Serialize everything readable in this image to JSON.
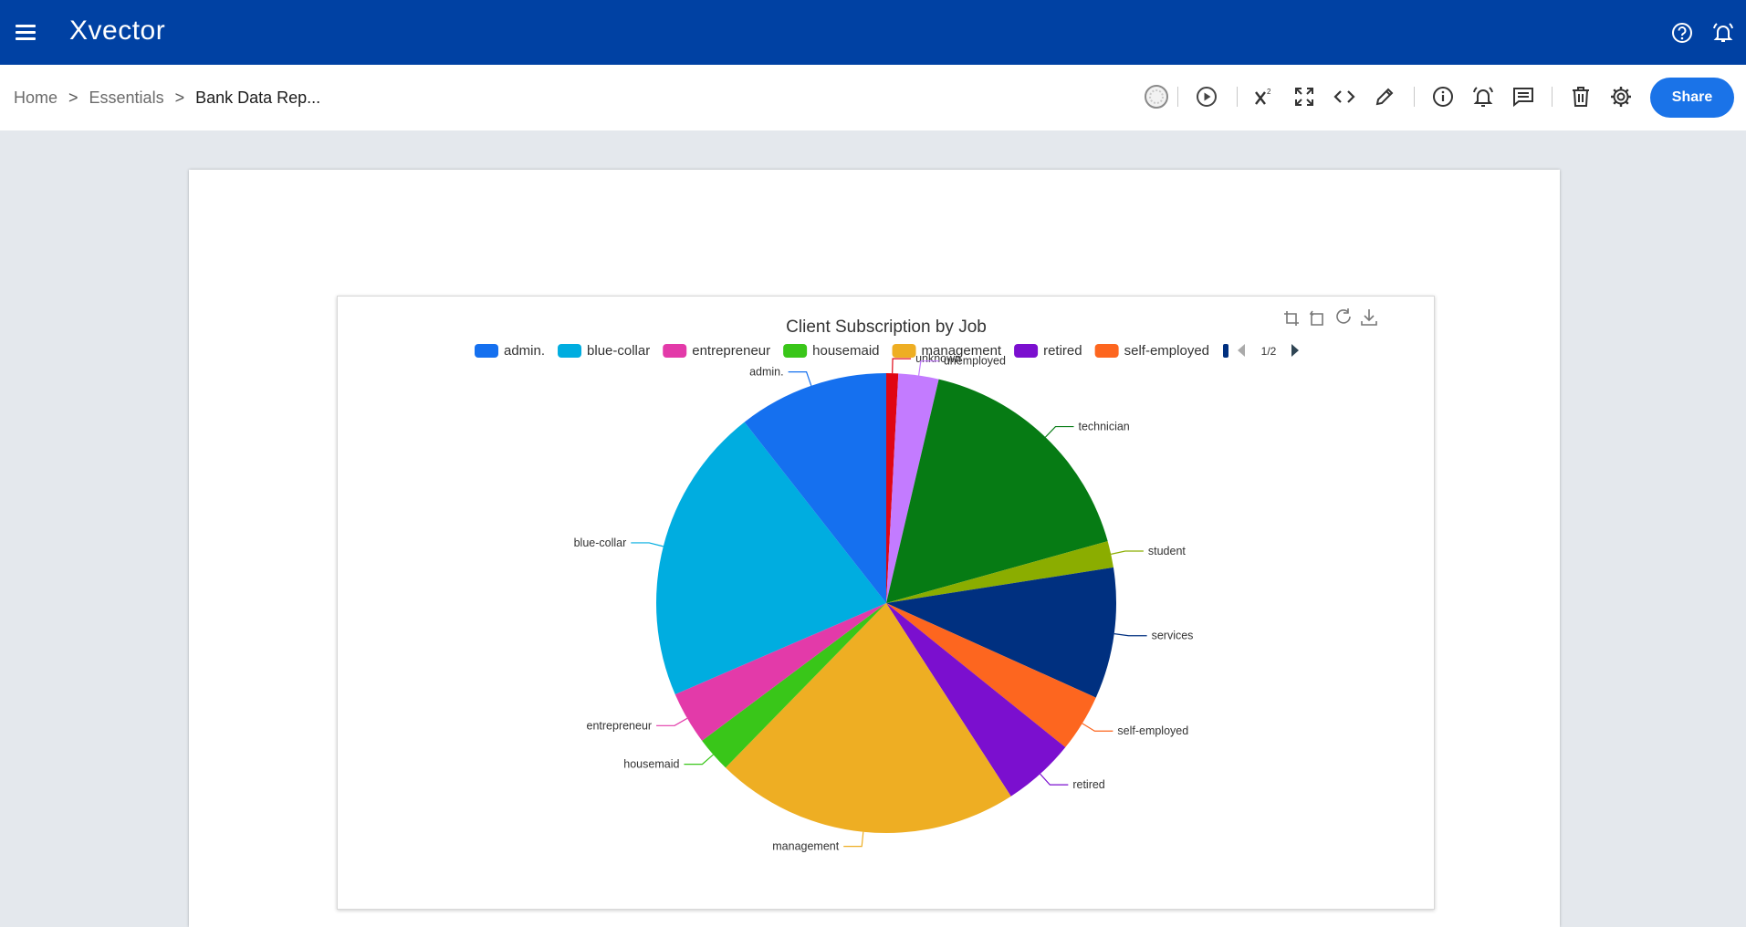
{
  "app": {
    "brand_first": "X",
    "brand_rest": "vector"
  },
  "breadcrumb": {
    "home": "Home",
    "section": "Essentials",
    "current": "Bank Data Rep...",
    "separator": ">"
  },
  "toolbar": {
    "share_label": "Share"
  },
  "icons": {
    "menu": "menu-icon",
    "help": "help-icon",
    "alerts": "bell-icon",
    "status": "status-icon",
    "run": "play-icon",
    "superscript": "superscript-icon",
    "expand": "expand-icon",
    "code": "code-icon",
    "edit": "pencil-icon",
    "info": "info-icon",
    "alert": "alarm-icon",
    "comments": "comment-icon",
    "delete": "trash-icon",
    "settings": "gear-icon"
  },
  "colors": {
    "topbar": "#0041a3",
    "accent": "#1a73e8"
  },
  "chart_data": {
    "type": "pie",
    "title": "Client Subscription by Job",
    "legend_page": "1/2",
    "legend_placement": "top",
    "legend_visible": [
      "admin.",
      "blue-collar",
      "entrepreneur",
      "housemaid",
      "management",
      "retired",
      "self-employed"
    ],
    "categories": [
      "admin.",
      "blue-collar",
      "entrepreneur",
      "housemaid",
      "management",
      "retired",
      "self-employed",
      "services",
      "student",
      "technician",
      "unemployed",
      "unknown"
    ],
    "values": [
      478,
      946,
      168,
      112,
      969,
      230,
      183,
      417,
      84,
      768,
      128,
      38
    ],
    "colors": [
      "#1570ef",
      "#00ade0",
      "#e33aa9",
      "#39c619",
      "#eeae23",
      "#7b0fcf",
      "#fd661f",
      "#003080",
      "#8bad00",
      "#067b14",
      "#c37bff",
      "#e00613"
    ]
  }
}
